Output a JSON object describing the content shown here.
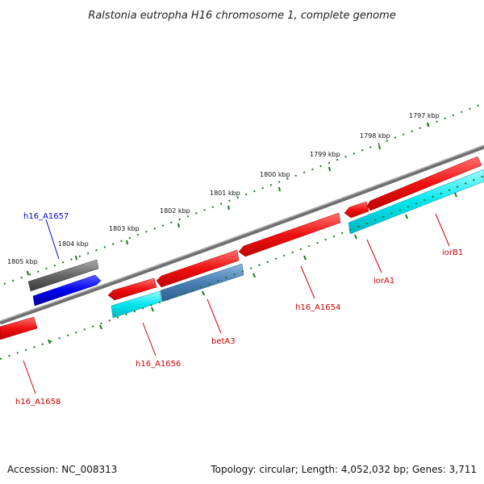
{
  "title": "Ralstonia eutropha H16 chromosome 1, complete genome",
  "footer": {
    "accession": "Accession: NC_008313",
    "topology": "Topology: circular; Length: 4,052,032 bp; Genes: 3,711"
  },
  "kbp_labels": [
    "1797 kbp",
    "1798 kbp",
    "1799 kbp",
    "1800 kbp",
    "1801 kbp",
    "1802 kbp",
    "1803 kbp",
    "1804 kbp",
    "1805 kbp"
  ],
  "gene_labels": [
    {
      "name": "h16_A1657",
      "color": "#0000cc"
    },
    {
      "name": "iorB1",
      "color": "#cc0000"
    },
    {
      "name": "iorA1",
      "color": "#cc0000"
    },
    {
      "name": "h16_A1654",
      "color": "#cc0000"
    },
    {
      "name": "betA3",
      "color": "#cc0000"
    },
    {
      "name": "h16_A1656",
      "color": "#cc0000"
    },
    {
      "name": "h16_A1658",
      "color": "#cc0000"
    }
  ],
  "colors": {
    "backbone": "#7a7a7a",
    "tick": "#1a7a1a",
    "forward_gene": "#ee1111",
    "reverse_gene": "#00e5ee",
    "steel_gene": "#4a7fb5",
    "blue_gene": "#0000ee",
    "gray_gene": "#666666"
  }
}
